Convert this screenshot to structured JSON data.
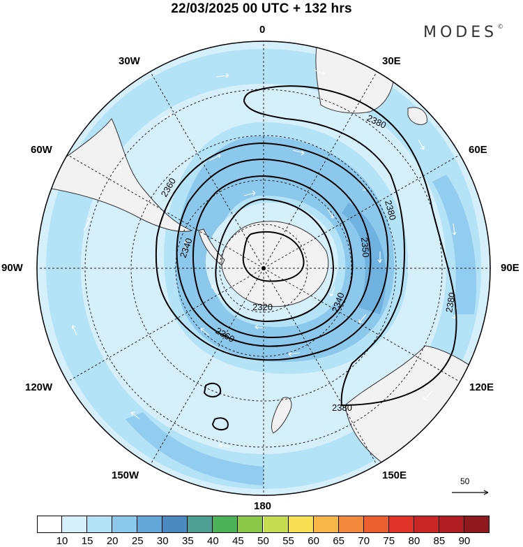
{
  "title": "22/03/2025  00 UTC  + 132 hrs",
  "brand": "MODES",
  "brand_mark": "©",
  "longitude_labels": {
    "lon_0": "0",
    "lon_30e": "30E",
    "lon_60e": "60E",
    "lon_90e": "90E",
    "lon_120e": "120E",
    "lon_150e": "150E",
    "lon_180": "180",
    "lon_150w": "150W",
    "lon_120w": "120W",
    "lon_90w": "90W",
    "lon_60w": "60W",
    "lon_30w": "30W"
  },
  "contour_labels": [
    "2380",
    "2380",
    "2380",
    "2380",
    "2360",
    "2360",
    "2350",
    "2340",
    "2340",
    "2320"
  ],
  "vector_reference": "50",
  "colorbar": {
    "colors": [
      "#ffffff",
      "#d6f0fb",
      "#b4e2f7",
      "#8cc8ec",
      "#64a8da",
      "#4a8ac0",
      "#4f9e94",
      "#4cb35a",
      "#8cc84a",
      "#c6dc50",
      "#f8e054",
      "#f6b648",
      "#f18a3c",
      "#ea5e30",
      "#e0342a",
      "#c92626",
      "#b01e24",
      "#8e1a1e"
    ],
    "labels": [
      "10",
      "15",
      "20",
      "25",
      "30",
      "35",
      "40",
      "45",
      "50",
      "55",
      "60",
      "65",
      "70",
      "75",
      "80",
      "85",
      "90"
    ]
  }
}
